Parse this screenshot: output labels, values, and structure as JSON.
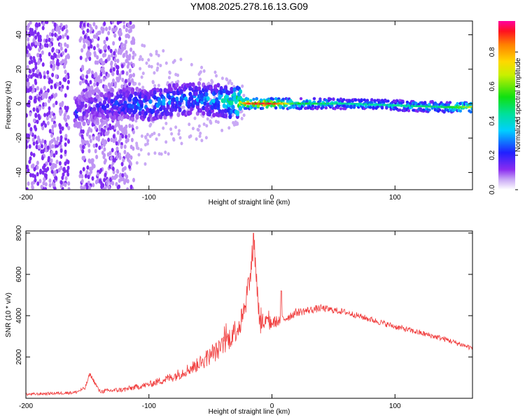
{
  "figure_title": "YM08.2025.278.16.13.G09",
  "colors": {
    "spectrogram_low": "#7a1cf0",
    "snr_line": "#f03a3a",
    "axis": "#000000"
  },
  "colorbar": {
    "label": "Normalized spectral amplitude",
    "ticks": [
      "0.0",
      "0.2",
      "0.4",
      "0.6",
      "0.8"
    ],
    "tick_values": [
      0.0,
      0.2,
      0.4,
      0.6,
      0.8
    ],
    "range": [
      0,
      0.98
    ]
  },
  "chart_data": [
    {
      "type": "heatmap",
      "name": "spectrogram",
      "title": "YM08.2025.278.16.13.G09",
      "xlabel": "Height of straight line (km)",
      "ylabel": "Frequency (Hz)",
      "xlim": [
        -200,
        163
      ],
      "ylim": [
        -50,
        48
      ],
      "xticks": [
        -200,
        -100,
        0,
        100
      ],
      "xtick_labels": [
        "-200",
        "-100",
        "0",
        "100"
      ],
      "yticks": [
        -40,
        -20,
        0,
        20,
        40
      ],
      "ytick_labels": [
        "-40",
        "-20",
        "0",
        "20",
        "40"
      ],
      "ridge": {
        "x": [
          -160,
          -150,
          -140,
          -120,
          -100,
          -80,
          -60,
          -45,
          -30,
          -20,
          -10,
          0,
          20,
          60,
          100,
          140,
          163
        ],
        "freq": [
          -5,
          -2,
          -1,
          0,
          -1,
          2,
          3,
          2,
          1,
          0,
          0,
          0,
          0,
          0,
          -1,
          -2,
          -2
        ],
        "amplitude": [
          0.25,
          0.2,
          0.25,
          0.3,
          0.35,
          0.35,
          0.35,
          0.4,
          0.6,
          0.9,
          0.95,
          0.95,
          0.55,
          0.45,
          0.45,
          0.5,
          0.7
        ]
      },
      "scatter_region": {
        "x_range": [
          -200,
          -112
        ],
        "freq_range": [
          -50,
          48
        ],
        "amplitude": 0.12
      }
    },
    {
      "type": "line",
      "name": "snr",
      "xlabel": "Height of straight line (km)",
      "ylabel": "SNR (10 * v/v)",
      "xlim": [
        -200,
        163
      ],
      "ylim": [
        0,
        8100
      ],
      "xticks": [
        -200,
        -100,
        0,
        100
      ],
      "xtick_labels": [
        "-200",
        "-100",
        "0",
        "100"
      ],
      "yticks": [
        2000,
        4000,
        6000,
        8000
      ],
      "ytick_labels": [
        "2000",
        "4000",
        "6000",
        "8000"
      ],
      "envelope": {
        "x": [
          -200,
          -160,
          -152,
          -148,
          -140,
          -120,
          -100,
          -80,
          -60,
          -40,
          -25,
          -17,
          -15,
          -10,
          0,
          10,
          20,
          40,
          60,
          100,
          140,
          163
        ],
        "y": [
          200,
          300,
          500,
          1200,
          350,
          450,
          700,
          1100,
          1700,
          2600,
          3800,
          6200,
          8000,
          3800,
          3700,
          3900,
          4200,
          4400,
          4200,
          3500,
          2900,
          2450
        ]
      },
      "noise": {
        "x": [
          -200,
          -150,
          -100,
          -60,
          -30,
          -15,
          0,
          20,
          60,
          163
        ],
        "amp": [
          120,
          180,
          300,
          700,
          1200,
          1500,
          600,
          400,
          300,
          250
        ]
      }
    }
  ]
}
